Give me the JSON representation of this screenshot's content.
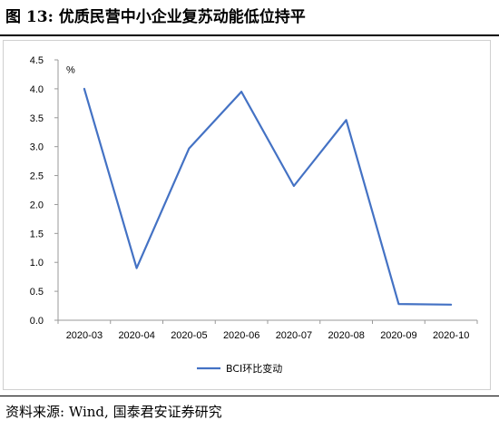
{
  "figure": {
    "title": "图 13:  优质民营中小企业复苏动能低位持平",
    "source": "资料来源:  Wind,  国泰君安证券研究"
  },
  "chart_data": {
    "type": "line",
    "categories": [
      "2020-03",
      "2020-04",
      "2020-05",
      "2020-06",
      "2020-07",
      "2020-08",
      "2020-09",
      "2020-10"
    ],
    "series": [
      {
        "name": "BCI环比变动",
        "values": [
          4.0,
          0.9,
          2.97,
          3.95,
          2.32,
          3.46,
          0.28,
          0.27
        ]
      }
    ],
    "ylim": [
      0,
      4.5
    ],
    "yticks": [
      "0.0",
      "0.5",
      "1.0",
      "1.5",
      "2.0",
      "2.5",
      "3.0",
      "3.5",
      "4.0",
      "4.5"
    ],
    "yunit": "%",
    "grid": false,
    "legend": "bottom-center",
    "line_color": "#4472C4"
  }
}
